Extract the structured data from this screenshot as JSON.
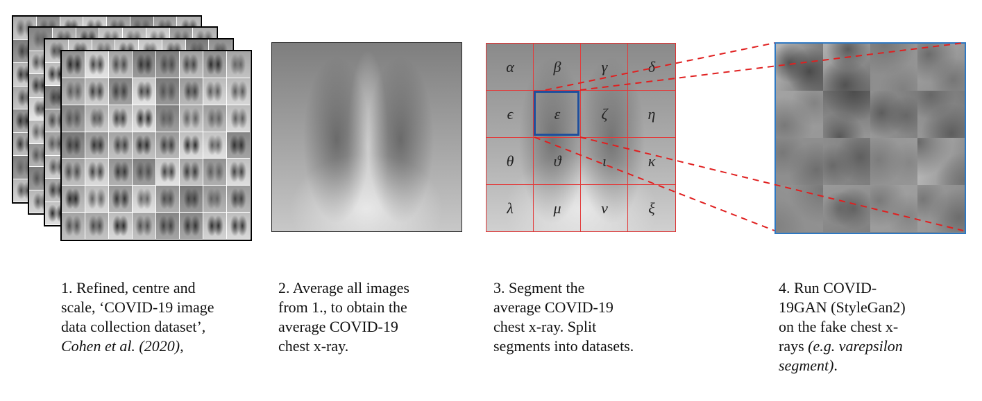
{
  "steps": [
    {
      "caption_lines": [
        "1. Refined, centre and",
        "scale, ‘COVID-19 image",
        "data collection dataset’,"
      ],
      "citation": "Cohen et al. (2020),"
    },
    {
      "caption_lines": [
        "2. Average all images",
        "from 1., to obtain the",
        "average COVID-19",
        "chest x-ray."
      ]
    },
    {
      "caption_lines": [
        "3. Segment the",
        "average COVID-19",
        "chest x-ray. Split",
        "segments into datasets."
      ]
    },
    {
      "caption_lines": [
        "4. Run COVID-",
        "19GAN (StyleGan2)",
        "on the fake chest x-"
      ],
      "caption_tail_plain": "rays ",
      "caption_tail_italic": "(e.g. varepsilon",
      "caption_tail_italic_2": "segment)",
      "caption_tail_end": "."
    }
  ],
  "segments": [
    [
      "α",
      "β",
      "γ",
      "δ"
    ],
    [
      "ϵ",
      "ε",
      "ζ",
      "η"
    ],
    [
      "θ",
      "ϑ",
      "ι",
      "κ"
    ],
    [
      "λ",
      "μ",
      "ν",
      "ξ"
    ]
  ],
  "colors": {
    "grid_lines": "#e23b3b",
    "highlight": "#1f4f9c",
    "gan_border": "#2e78c2",
    "connector": "#e02020"
  }
}
